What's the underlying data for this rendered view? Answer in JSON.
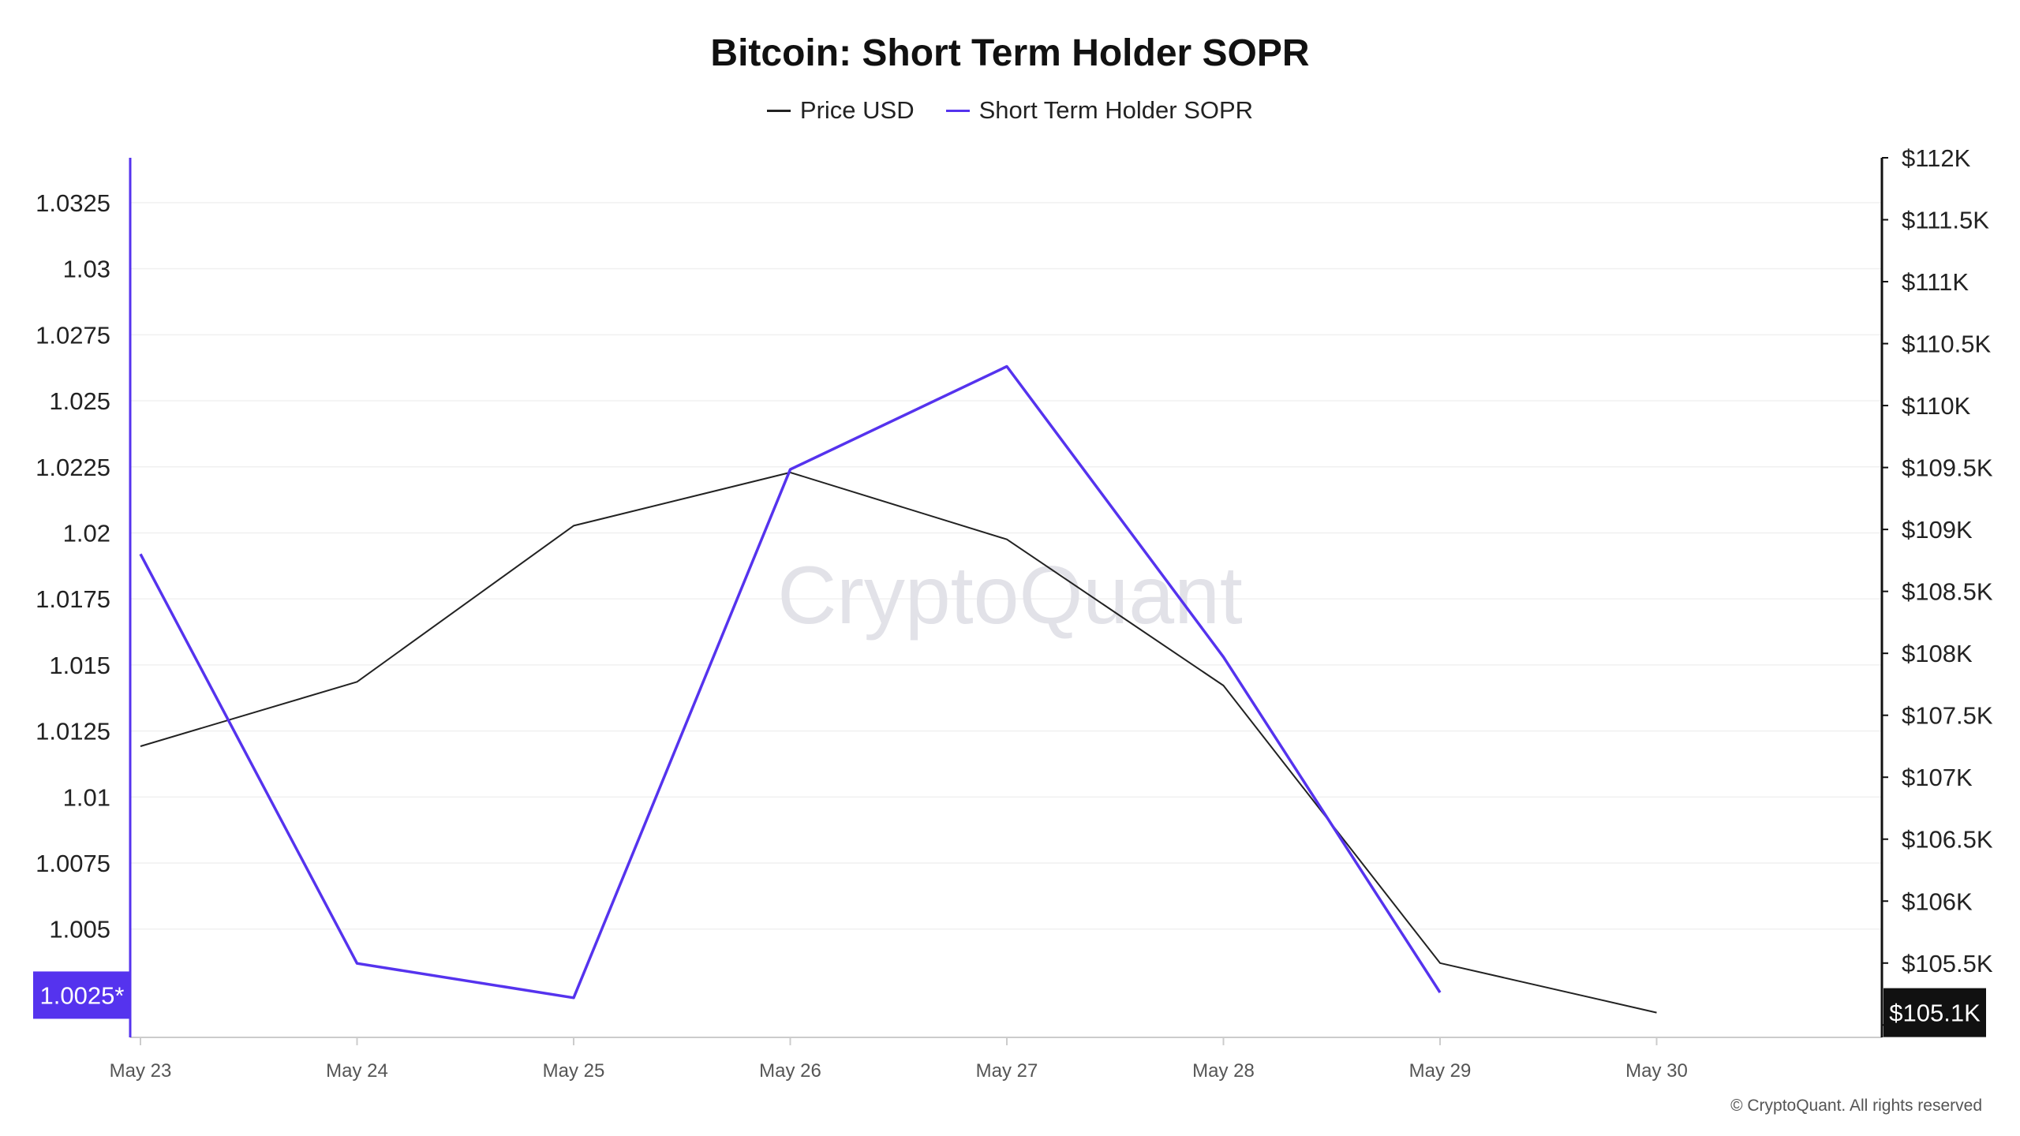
{
  "chart_data": {
    "type": "line",
    "title": "Bitcoin: Short Term Holder SOPR",
    "watermark": "CryptoQuant",
    "copyright": "© CryptoQuant. All rights reserved",
    "categories": [
      "May 23",
      "May 24",
      "May 25",
      "May 26",
      "May 27",
      "May 28",
      "May 29",
      "May 30"
    ],
    "series": [
      {
        "name": "Price USD",
        "axis": "right",
        "color": "#222222",
        "values": [
          107250,
          107770,
          109030,
          109460,
          108920,
          107740,
          105500,
          105100
        ]
      },
      {
        "name": "Short Term Holder SOPR",
        "axis": "left",
        "color": "#5533ee",
        "values": [
          1.0192,
          1.0037,
          1.0024,
          1.0224,
          1.0263,
          1.0153,
          1.0026,
          null
        ]
      }
    ],
    "y_left": {
      "ylim": [
        1.0009,
        1.0342
      ],
      "ticks": [
        1.005,
        1.0075,
        1.01,
        1.0125,
        1.015,
        1.0175,
        1.02,
        1.0225,
        1.025,
        1.0275,
        1.03,
        1.0325
      ],
      "tick_labels": [
        "1.005",
        "1.0075",
        "1.01",
        "1.0125",
        "1.015",
        "1.0175",
        "1.02",
        "1.0225",
        "1.025",
        "1.0275",
        "1.03",
        "1.0325"
      ],
      "marker_value": 1.0025,
      "marker_label": "1.0025*",
      "marker_color": "#5533ee"
    },
    "y_right": {
      "ylim": [
        104900,
        112000
      ],
      "ticks": [
        105000,
        105500,
        106000,
        106500,
        107000,
        107500,
        108000,
        108500,
        109000,
        109500,
        110000,
        110500,
        111000,
        111500,
        112000
      ],
      "tick_labels": [
        "$105K",
        "$105.5K",
        "$106K",
        "$106.5K",
        "$107K",
        "$107.5K",
        "$108K",
        "$108.5K",
        "$109K",
        "$109.5K",
        "$110K",
        "$110.5K",
        "$111K",
        "$111.5K",
        "$112K"
      ],
      "marker_value": 105100,
      "marker_label": "$105.1K",
      "marker_color": "#111111"
    },
    "grid": true,
    "legend_position": "top-center"
  }
}
